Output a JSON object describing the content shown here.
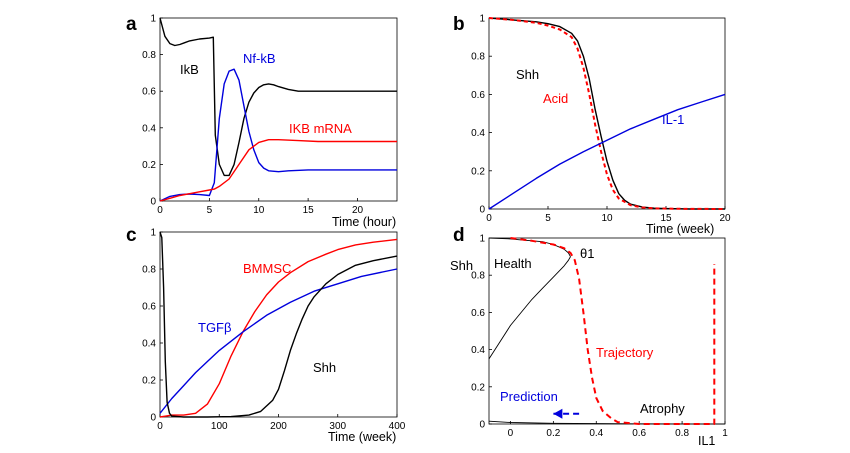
{
  "chart_data": [
    {
      "panel": "a",
      "type": "line",
      "xlabel": "Time (hour)",
      "ylabel": "",
      "xlim": [
        0,
        24
      ],
      "ylim": [
        0,
        1
      ],
      "xticks": [
        "0",
        "5",
        "10",
        "15",
        "20"
      ],
      "yticks": [
        "0",
        "0.2",
        "0.4",
        "0.6",
        "0.8",
        "1"
      ],
      "grid": false,
      "series": [
        {
          "name": "IkB",
          "color": "#000000",
          "x": [
            0,
            0.5,
            1,
            1.5,
            2,
            2.5,
            3,
            4,
            5,
            5.4,
            5.6,
            6,
            6.5,
            7,
            7.5,
            8,
            8.5,
            9,
            9.5,
            10,
            10.5,
            11,
            11.5,
            12,
            13,
            14,
            15,
            17,
            20,
            24
          ],
          "y": [
            1,
            0.9,
            0.86,
            0.85,
            0.855,
            0.865,
            0.875,
            0.885,
            0.89,
            0.895,
            0.36,
            0.2,
            0.14,
            0.14,
            0.2,
            0.32,
            0.45,
            0.54,
            0.59,
            0.62,
            0.635,
            0.64,
            0.635,
            0.625,
            0.61,
            0.6,
            0.6,
            0.6,
            0.6,
            0.6
          ]
        },
        {
          "name": "Nf-kB",
          "color": "#0000dd",
          "x": [
            0,
            1,
            2,
            3,
            4,
            5,
            5.5,
            6,
            6.5,
            7,
            7.5,
            8,
            8.5,
            9,
            9.5,
            10,
            10.5,
            11,
            12,
            13,
            15,
            20,
            24
          ],
          "y": [
            0,
            0.025,
            0.035,
            0.038,
            0.035,
            0.03,
            0.1,
            0.45,
            0.64,
            0.71,
            0.72,
            0.66,
            0.52,
            0.38,
            0.28,
            0.21,
            0.18,
            0.165,
            0.16,
            0.165,
            0.17,
            0.17,
            0.17
          ]
        },
        {
          "name": "IKB mRNA",
          "color": "#ff0000",
          "x": [
            0,
            1,
            2,
            3,
            4,
            5,
            5.5,
            6,
            7,
            8,
            9,
            10,
            11,
            12,
            14,
            16,
            20,
            24
          ],
          "y": [
            0,
            0.015,
            0.03,
            0.04,
            0.05,
            0.06,
            0.065,
            0.08,
            0.12,
            0.2,
            0.28,
            0.32,
            0.335,
            0.335,
            0.33,
            0.325,
            0.325,
            0.325
          ]
        }
      ]
    },
    {
      "panel": "b",
      "type": "line",
      "xlabel": "Time (week)",
      "ylabel": "",
      "xlim": [
        0,
        20
      ],
      "ylim": [
        0,
        1
      ],
      "xticks": [
        "0",
        "5",
        "10",
        "15",
        "20"
      ],
      "yticks": [
        "0",
        "0.2",
        "0.4",
        "0.6",
        "0.8",
        "1"
      ],
      "grid": false,
      "series": [
        {
          "name": "Shh",
          "color": "#000000",
          "style": "solid",
          "x": [
            0,
            2,
            4,
            5,
            6,
            7,
            7.5,
            8,
            8.5,
            9,
            9.5,
            10,
            10.5,
            11,
            11.5,
            12,
            13,
            14,
            15,
            17,
            20
          ],
          "y": [
            1,
            0.99,
            0.98,
            0.97,
            0.955,
            0.92,
            0.88,
            0.8,
            0.68,
            0.52,
            0.38,
            0.25,
            0.15,
            0.08,
            0.045,
            0.025,
            0.01,
            0.004,
            0.002,
            0,
            0
          ]
        },
        {
          "name": "Acid",
          "color": "#ff0000",
          "style": "dashed",
          "x": [
            0,
            2,
            4,
            5,
            6,
            7,
            7.5,
            8,
            8.5,
            9,
            9.5,
            10,
            10.5,
            11,
            12,
            13,
            14,
            16,
            20
          ],
          "y": [
            1,
            0.99,
            0.975,
            0.96,
            0.94,
            0.9,
            0.84,
            0.74,
            0.6,
            0.44,
            0.3,
            0.18,
            0.1,
            0.055,
            0.02,
            0.008,
            0.003,
            0.001,
            0
          ]
        },
        {
          "name": "IL-1",
          "color": "#0000dd",
          "style": "solid",
          "x": [
            0,
            2,
            4,
            6,
            8,
            10,
            12,
            14,
            16,
            18,
            20
          ],
          "y": [
            0,
            0.08,
            0.16,
            0.235,
            0.3,
            0.36,
            0.42,
            0.47,
            0.52,
            0.56,
            0.6
          ]
        }
      ]
    },
    {
      "panel": "c",
      "type": "line",
      "xlabel": "Time (week)",
      "ylabel": "",
      "xlim": [
        0,
        400
      ],
      "ylim": [
        0,
        1
      ],
      "xticks": [
        "0",
        "100",
        "200",
        "300",
        "400"
      ],
      "yticks": [
        "0",
        "0.2",
        "0.4",
        "0.6",
        "0.8",
        "1"
      ],
      "grid": false,
      "series": [
        {
          "name": "BMMSC",
          "color": "#ff0000",
          "x": [
            0,
            10,
            20,
            40,
            60,
            80,
            100,
            120,
            140,
            160,
            180,
            200,
            220,
            250,
            280,
            300,
            330,
            360,
            400
          ],
          "y": [
            0,
            0.005,
            0.01,
            0.01,
            0.02,
            0.07,
            0.18,
            0.33,
            0.46,
            0.57,
            0.66,
            0.73,
            0.78,
            0.84,
            0.88,
            0.905,
            0.93,
            0.945,
            0.96
          ]
        },
        {
          "name": "TGFβ",
          "color": "#0000dd",
          "x": [
            0,
            20,
            40,
            60,
            80,
            100,
            140,
            180,
            220,
            260,
            300,
            340,
            400
          ],
          "y": [
            0.02,
            0.1,
            0.17,
            0.24,
            0.3,
            0.36,
            0.46,
            0.55,
            0.62,
            0.68,
            0.72,
            0.76,
            0.8
          ]
        },
        {
          "name": "Shh",
          "color": "#000000",
          "x": [
            0,
            3,
            6,
            9,
            12,
            16,
            20,
            40,
            80,
            120,
            150,
            170,
            190,
            200,
            210,
            220,
            230,
            240,
            250,
            260,
            280,
            300,
            330,
            360,
            400
          ],
          "y": [
            1,
            0.97,
            0.7,
            0.3,
            0.08,
            0.02,
            0.005,
            0,
            0,
            0.002,
            0.01,
            0.03,
            0.09,
            0.15,
            0.25,
            0.36,
            0.45,
            0.53,
            0.6,
            0.65,
            0.72,
            0.77,
            0.82,
            0.845,
            0.87
          ]
        }
      ]
    },
    {
      "panel": "d",
      "type": "line",
      "xlabel": "IL1",
      "ylabel": "Shh",
      "xlim": [
        -0.1,
        1
      ],
      "ylim": [
        0,
        1
      ],
      "xticks": [
        "0",
        "0.2",
        "0.4",
        "0.6",
        "0.8",
        "1"
      ],
      "yticks": [
        "0",
        "0.2",
        "0.4",
        "0.6",
        "0.8",
        "1"
      ],
      "grid": false,
      "series": [
        {
          "name": "",
          "color": "#000000",
          "style": "solid",
          "x": [
            -0.1,
            0,
            0.05,
            0.1,
            0.15,
            0.2,
            0.25,
            0.27,
            0.28
          ],
          "y": [
            1,
            0.995,
            0.99,
            0.985,
            0.98,
            0.965,
            0.94,
            0.92,
            0.9
          ]
        },
        {
          "name": "",
          "color": "#000000",
          "style": "solid",
          "x": [
            -0.1,
            -0.05,
            0,
            0.05,
            0.1,
            0.15,
            0.2,
            0.25,
            0.27,
            0.28
          ],
          "y": [
            0.35,
            0.44,
            0.53,
            0.6,
            0.67,
            0.73,
            0.79,
            0.85,
            0.88,
            0.9
          ]
        },
        {
          "name": "",
          "color": "#000000",
          "style": "solid",
          "x": [
            -0.1,
            0,
            0.2,
            0.4,
            0.6,
            0.8,
            1
          ],
          "y": [
            0.015,
            0.008,
            0.004,
            0.002,
            0.001,
            0.0005,
            0
          ]
        },
        {
          "name": "Trajectory",
          "color": "#ff0000",
          "style": "dashed",
          "x": [
            0,
            0.1,
            0.2,
            0.25,
            0.28,
            0.3,
            0.32,
            0.34,
            0.36,
            0.38,
            0.4,
            0.43,
            0.47,
            0.5,
            0.6,
            0.7,
            0.8,
            0.95,
            0.95
          ],
          "y": [
            1,
            0.985,
            0.965,
            0.945,
            0.92,
            0.88,
            0.78,
            0.6,
            0.4,
            0.25,
            0.14,
            0.07,
            0.03,
            0.01,
            0,
            0,
            0,
            0,
            0.86
          ]
        },
        {
          "name": "Prediction",
          "color": "#0000dd",
          "style": "dashed",
          "x": [
            0.32,
            0.2
          ],
          "y": [
            0.055,
            0.055
          ]
        }
      ],
      "annotations": [
        {
          "text": "Health"
        },
        {
          "text": "θ1"
        },
        {
          "text": "Atrophy"
        }
      ]
    }
  ]
}
